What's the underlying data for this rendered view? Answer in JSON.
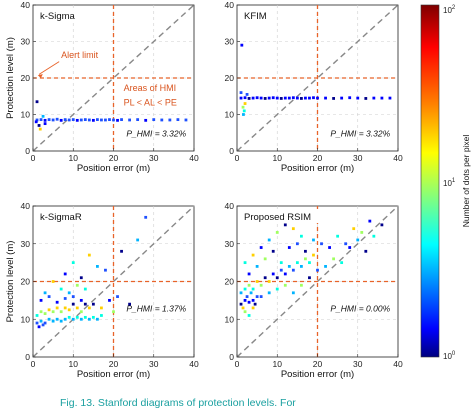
{
  "colorbar": {
    "label": "Number of dots per pixel",
    "ticks": [
      "10^2",
      "10^1",
      "10^0"
    ],
    "colormap": [
      "#7f0000",
      "#ff0000",
      "#ff8000",
      "#ffff00",
      "#80ff80",
      "#00ffff",
      "#0080ff",
      "#0000ff",
      "#00007f"
    ]
  },
  "colors": {
    "threshold_lines": "#e8632a",
    "diagonal": "#888888",
    "annotation_text": "#d9541e",
    "caption": "#1aa0a0"
  },
  "caption_text": "Fig. 13. Stanford diagrams of protection levels. For",
  "chart_data": [
    {
      "type": "scatter",
      "title": "k-Sigma",
      "xlabel": "Position error (m)",
      "ylabel": "Protection level (m)",
      "xlim": [
        0,
        40
      ],
      "ylim": [
        0,
        40
      ],
      "xticks": [
        "0",
        "10",
        "20",
        "30",
        "40"
      ],
      "yticks": [
        "0",
        "10",
        "20",
        "30",
        "40"
      ],
      "alert_limit": 20,
      "grid": true,
      "hmi_rate": "P_HMI = 3.32%",
      "annotations": [
        "Alert limit",
        "Areas of HMI",
        "PL < AL < PE"
      ],
      "points": [
        [
          1,
          8.5
        ],
        [
          2,
          8.6
        ],
        [
          3,
          8.4
        ],
        [
          4,
          8.6
        ],
        [
          5,
          8.5
        ],
        [
          6,
          8.7
        ],
        [
          7,
          8.4
        ],
        [
          8,
          8.6
        ],
        [
          9,
          8.5
        ],
        [
          10,
          8.6
        ],
        [
          11,
          8.4
        ],
        [
          12,
          8.5
        ],
        [
          13,
          8.6
        ],
        [
          14,
          8.5
        ],
        [
          15,
          8.4
        ],
        [
          16,
          8.6
        ],
        [
          17,
          8.5
        ],
        [
          18,
          8.5
        ],
        [
          19,
          8.6
        ],
        [
          20,
          8.5
        ],
        [
          21,
          8.4
        ],
        [
          22,
          8.6
        ],
        [
          24,
          8.5
        ],
        [
          26,
          8.6
        ],
        [
          28,
          8.4
        ],
        [
          30,
          8.6
        ],
        [
          32,
          8.5
        ],
        [
          34,
          8.5
        ],
        [
          36,
          8.6
        ],
        [
          38,
          8.5
        ],
        [
          1.5,
          7
        ],
        [
          1.8,
          6
        ],
        [
          1,
          13.5
        ],
        [
          0.8,
          8
        ],
        [
          2.5,
          9.5
        ],
        [
          3,
          7.5
        ]
      ]
    },
    {
      "type": "scatter",
      "title": "KFIM",
      "xlabel": "Position error (m)",
      "ylabel": "",
      "xlim": [
        0,
        40
      ],
      "ylim": [
        0,
        40
      ],
      "xticks": [
        "0",
        "10",
        "20",
        "30",
        "40"
      ],
      "yticks": [
        "0",
        "10",
        "20",
        "30",
        "40"
      ],
      "alert_limit": 20,
      "grid": true,
      "hmi_rate": "P_HMI = 3.32%",
      "points": [
        [
          1,
          14.5
        ],
        [
          2,
          14.6
        ],
        [
          3,
          14.4
        ],
        [
          4,
          14.5
        ],
        [
          5,
          14.6
        ],
        [
          6,
          14.5
        ],
        [
          7,
          14.4
        ],
        [
          8,
          14.5
        ],
        [
          9,
          14.6
        ],
        [
          10,
          14.5
        ],
        [
          11,
          14.4
        ],
        [
          12,
          14.5
        ],
        [
          13,
          14.5
        ],
        [
          14,
          14.6
        ],
        [
          15,
          14.5
        ],
        [
          16,
          14.4
        ],
        [
          17,
          14.5
        ],
        [
          18,
          14.5
        ],
        [
          19,
          14.6
        ],
        [
          20,
          14.5
        ],
        [
          22,
          14.5
        ],
        [
          24,
          14.4
        ],
        [
          26,
          14.5
        ],
        [
          28,
          14.6
        ],
        [
          30,
          14.5
        ],
        [
          32,
          14.4
        ],
        [
          34,
          14.5
        ],
        [
          36,
          14.5
        ],
        [
          38,
          14.5
        ],
        [
          1.5,
          12
        ],
        [
          1.8,
          11
        ],
        [
          1.6,
          10
        ],
        [
          2,
          13
        ],
        [
          1,
          16
        ],
        [
          2.5,
          15.5
        ],
        [
          1.2,
          29
        ]
      ]
    },
    {
      "type": "scatter",
      "title": "k-SigmaR",
      "xlabel": "Position error (m)",
      "ylabel": "Protection level (m)",
      "xlim": [
        0,
        40
      ],
      "ylim": [
        0,
        40
      ],
      "xticks": [
        "0",
        "10",
        "20",
        "30",
        "40"
      ],
      "yticks": [
        "0",
        "10",
        "20",
        "30",
        "40"
      ],
      "alert_limit": 20,
      "grid": true,
      "hmi_rate": "P_HMI = 1.37%",
      "points": [
        [
          1,
          9
        ],
        [
          2,
          9.5
        ],
        [
          3,
          9
        ],
        [
          4,
          10
        ],
        [
          5,
          9.5
        ],
        [
          6,
          10
        ],
        [
          7,
          9.5
        ],
        [
          8,
          10
        ],
        [
          9,
          10.5
        ],
        [
          10,
          10
        ],
        [
          11,
          10.5
        ],
        [
          12,
          10
        ],
        [
          13,
          10.5
        ],
        [
          14,
          10
        ],
        [
          15,
          10.5
        ],
        [
          16,
          10
        ],
        [
          1,
          11
        ],
        [
          2,
          12
        ],
        [
          3,
          11.5
        ],
        [
          4,
          12.5
        ],
        [
          5,
          12
        ],
        [
          6,
          13
        ],
        [
          7,
          12
        ],
        [
          8,
          13
        ],
        [
          9,
          12.5
        ],
        [
          10,
          14
        ],
        [
          11,
          13
        ],
        [
          12,
          12
        ],
        [
          13,
          14
        ],
        [
          2,
          15
        ],
        [
          4,
          16
        ],
        [
          6,
          14.5
        ],
        [
          8,
          15.5
        ],
        [
          10,
          16
        ],
        [
          12,
          15
        ],
        [
          14,
          13
        ],
        [
          3,
          17
        ],
        [
          7,
          18
        ],
        [
          9,
          17
        ],
        [
          11,
          19
        ],
        [
          13,
          18
        ],
        [
          15,
          14
        ],
        [
          17,
          13
        ],
        [
          19,
          15
        ],
        [
          21,
          16
        ],
        [
          24,
          14
        ],
        [
          5,
          20
        ],
        [
          8,
          22
        ],
        [
          12,
          21
        ],
        [
          16,
          24
        ],
        [
          10,
          25
        ],
        [
          14,
          27
        ],
        [
          18,
          23
        ],
        [
          22,
          28
        ],
        [
          26,
          31
        ],
        [
          28,
          37
        ],
        [
          20,
          12
        ],
        [
          17,
          11
        ],
        [
          1.5,
          8
        ],
        [
          2.5,
          8.5
        ]
      ]
    },
    {
      "type": "scatter",
      "title": "Proposed RSIM",
      "xlabel": "Position error (m)",
      "ylabel": "",
      "xlim": [
        0,
        40
      ],
      "ylim": [
        0,
        40
      ],
      "xticks": [
        "0",
        "10",
        "20",
        "30",
        "40"
      ],
      "yticks": [
        "0",
        "10",
        "20",
        "30",
        "40"
      ],
      "alert_limit": 20,
      "grid": true,
      "hmi_rate": "P_HMI = 0.00%",
      "points": [
        [
          1,
          14
        ],
        [
          2,
          15
        ],
        [
          3,
          14.5
        ],
        [
          4,
          15
        ],
        [
          5,
          16
        ],
        [
          1.5,
          13
        ],
        [
          2.5,
          16
        ],
        [
          3.5,
          17
        ],
        [
          4.5,
          14
        ],
        [
          1,
          17
        ],
        [
          2,
          18
        ],
        [
          3,
          19
        ],
        [
          4,
          18
        ],
        [
          5,
          20
        ],
        [
          6,
          19
        ],
        [
          7,
          21
        ],
        [
          8,
          20
        ],
        [
          9,
          22
        ],
        [
          10,
          21
        ],
        [
          11,
          23
        ],
        [
          12,
          22
        ],
        [
          13,
          24
        ],
        [
          14,
          23
        ],
        [
          15,
          25
        ],
        [
          16,
          24
        ],
        [
          17,
          26
        ],
        [
          18,
          25
        ],
        [
          19,
          27
        ],
        [
          3,
          22
        ],
        [
          5,
          24
        ],
        [
          7,
          26
        ],
        [
          9,
          28
        ],
        [
          11,
          25
        ],
        [
          13,
          29
        ],
        [
          15,
          30
        ],
        [
          17,
          28
        ],
        [
          19,
          31
        ],
        [
          21,
          30
        ],
        [
          23,
          29
        ],
        [
          25,
          32
        ],
        [
          27,
          30
        ],
        [
          29,
          34
        ],
        [
          31,
          33
        ],
        [
          33,
          36
        ],
        [
          2,
          25
        ],
        [
          4,
          27
        ],
        [
          6,
          29
        ],
        [
          8,
          31
        ],
        [
          10,
          33
        ],
        [
          12,
          35
        ],
        [
          14,
          34
        ],
        [
          16,
          32
        ],
        [
          6,
          16
        ],
        [
          8,
          17
        ],
        [
          10,
          18
        ],
        [
          12,
          19
        ],
        [
          14,
          17
        ],
        [
          16,
          19
        ],
        [
          18,
          21
        ],
        [
          20,
          23
        ],
        [
          22,
          24
        ],
        [
          24,
          26
        ],
        [
          26,
          25
        ],
        [
          28,
          29
        ],
        [
          30,
          31
        ],
        [
          32,
          28
        ],
        [
          34,
          32
        ],
        [
          36,
          35
        ],
        [
          2,
          12
        ],
        [
          3,
          11
        ],
        [
          4,
          13
        ]
      ]
    }
  ]
}
